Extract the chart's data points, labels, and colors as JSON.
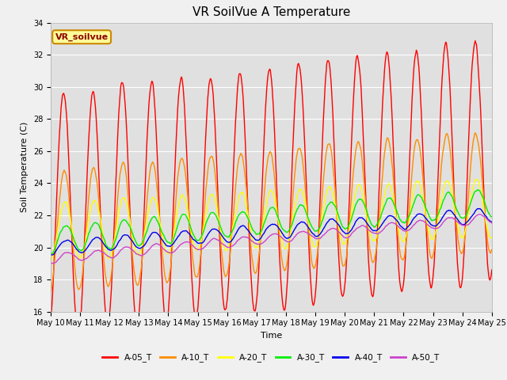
{
  "title": "VR SoilVue A Temperature",
  "xlabel": "Time",
  "ylabel": "Soil Temperature (C)",
  "ylim": [
    16,
    34
  ],
  "yticks": [
    16,
    18,
    20,
    22,
    24,
    26,
    28,
    30,
    32,
    34
  ],
  "series_colors": {
    "A-05_T": "#ff0000",
    "A-10_T": "#ff8c00",
    "A-20_T": "#ffff00",
    "A-30_T": "#00ee00",
    "A-40_T": "#0000ee",
    "A-50_T": "#cc44cc"
  },
  "legend_label": "VR_soilvue",
  "legend_box_bg": "#ffff99",
  "legend_box_border": "#cc8800",
  "background_color": "#f0f0f0",
  "plot_bg_color": "#e0e0e0",
  "grid_color": "#ffffff",
  "title_fontsize": 11,
  "axis_label_fontsize": 8,
  "tick_fontsize": 7,
  "linewidth": 1.0,
  "xtick_labels": [
    "May 10",
    "May 11",
    "May 12",
    "May 13",
    "May 14",
    "May 15",
    "May 16",
    "May 17",
    "May 18",
    "May 19",
    "May 20",
    "May 21",
    "May 22",
    "May 23",
    "May 24",
    "May 25"
  ]
}
